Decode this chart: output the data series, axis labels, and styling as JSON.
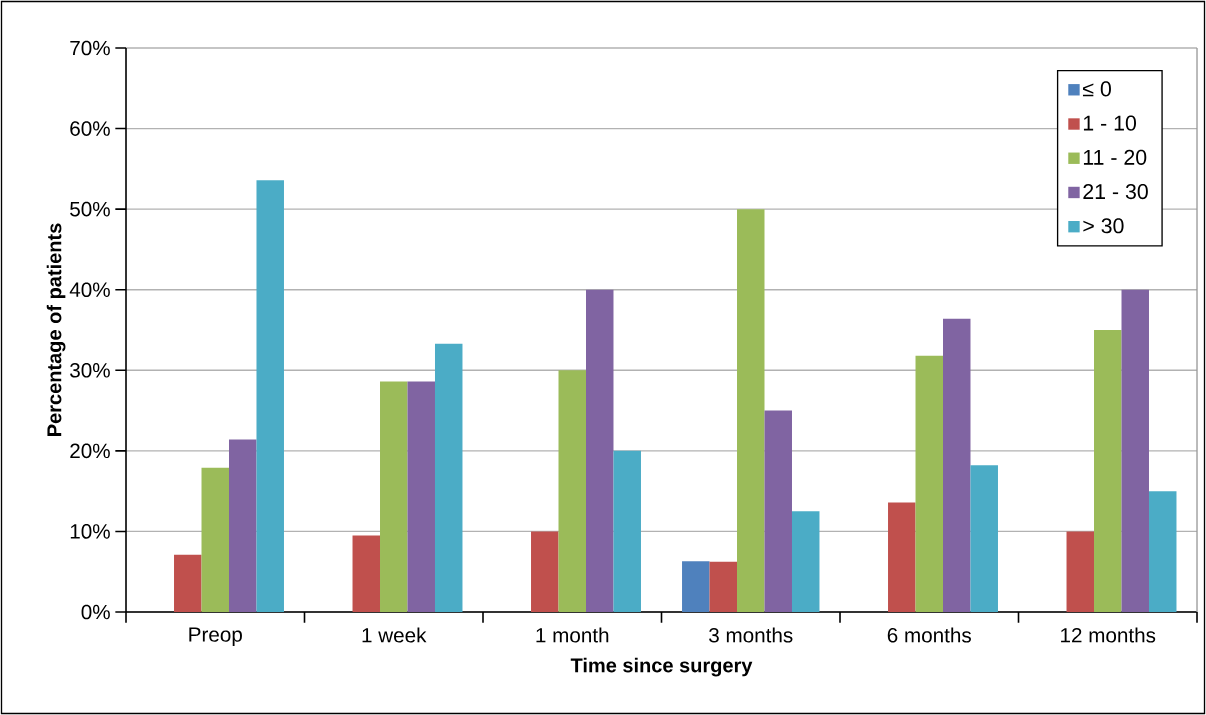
{
  "chart_data": {
    "type": "bar",
    "xlabel": "Time since surgery",
    "ylabel": "Percentage of patients",
    "categories": [
      "Preop",
      "1 week",
      "1 month",
      "3 months",
      "6 months",
      "12 months"
    ],
    "series": [
      {
        "name": "≤ 0",
        "color": "#4f81bd",
        "values": [
          null,
          null,
          null,
          6.3,
          null,
          null
        ]
      },
      {
        "name": "1 - 10",
        "color": "#c0504d",
        "values": [
          7.1,
          9.5,
          10,
          6.25,
          13.6,
          10
        ]
      },
      {
        "name": "11 - 20",
        "color": "#9bbb59",
        "values": [
          17.9,
          28.6,
          30,
          50,
          31.8,
          35
        ]
      },
      {
        "name": "21 - 30",
        "color": "#8064a2",
        "values": [
          21.4,
          28.6,
          40,
          25,
          36.4,
          40
        ]
      },
      {
        "name": "> 30",
        "color": "#4bacc6",
        "values": [
          53.6,
          33.3,
          20,
          12.5,
          18.2,
          15
        ]
      }
    ],
    "ylim": [
      0,
      70
    ],
    "yticks": [
      {
        "value": 0,
        "label": "0%"
      },
      {
        "value": 10,
        "label": "10%"
      },
      {
        "value": 20,
        "label": "20%"
      },
      {
        "value": 30,
        "label": "30%"
      },
      {
        "value": 40,
        "label": "40%"
      },
      {
        "value": 50,
        "label": "50%"
      },
      {
        "value": 60,
        "label": "60%"
      },
      {
        "value": 70,
        "label": "70%"
      }
    ],
    "grid": "y",
    "legend": "top right"
  }
}
